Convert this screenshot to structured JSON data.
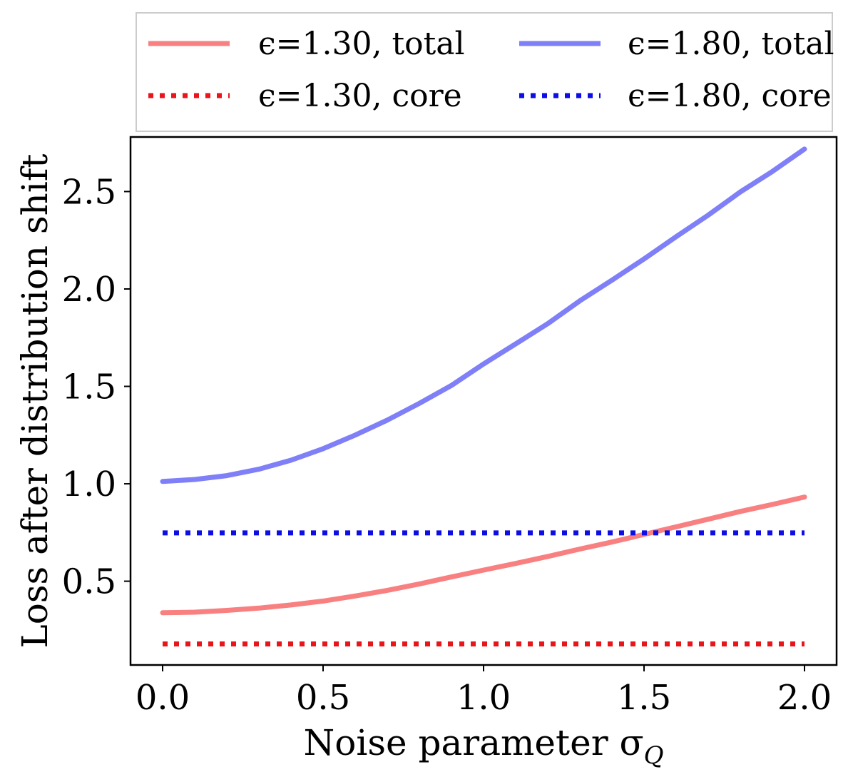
{
  "chart_data": {
    "type": "line",
    "title": "",
    "xlabel": "Noise parameter σ",
    "xlabel_subscript": "Q",
    "ylabel": "Loss after distribution shift",
    "xlim": [
      -0.1,
      2.1
    ],
    "ylim": [
      0.07,
      2.78
    ],
    "xticks": [
      0.0,
      0.5,
      1.0,
      1.5,
      2.0
    ],
    "xtick_labels": [
      "0.0",
      "0.5",
      "1.0",
      "1.5",
      "2.0"
    ],
    "yticks": [
      0.5,
      1.0,
      1.5,
      2.0,
      2.5
    ],
    "ytick_labels": [
      "0.5",
      "1.0",
      "1.5",
      "2.0",
      "2.5"
    ],
    "grid": false,
    "legend_placement": "top, above plot, 2 columns",
    "x": [
      0.0,
      0.1,
      0.2,
      0.3,
      0.4,
      0.5,
      0.6,
      0.7,
      0.8,
      0.9,
      1.0,
      1.1,
      1.2,
      1.3,
      1.4,
      1.5,
      1.6,
      1.7,
      1.8,
      1.9,
      2.0
    ],
    "series": [
      {
        "name": "ϵ=1.30, total",
        "color": "#f88080",
        "style": "solid",
        "values": [
          0.338,
          0.341,
          0.35,
          0.362,
          0.378,
          0.398,
          0.424,
          0.453,
          0.486,
          0.522,
          0.557,
          0.591,
          0.627,
          0.665,
          0.701,
          0.74,
          0.779,
          0.818,
          0.858,
          0.894,
          0.932
        ]
      },
      {
        "name": "ϵ=1.80, total",
        "color": "#7f7ff8",
        "style": "solid",
        "values": [
          1.012,
          1.022,
          1.042,
          1.075,
          1.121,
          1.18,
          1.25,
          1.327,
          1.413,
          1.505,
          1.615,
          1.718,
          1.822,
          1.939,
          2.045,
          2.154,
          2.268,
          2.379,
          2.498,
          2.603,
          2.718
        ]
      },
      {
        "name": "ϵ=1.30, core",
        "color": "#e8151b",
        "style": "dotted",
        "values": [
          0.178,
          0.178,
          0.178,
          0.178,
          0.178,
          0.178,
          0.178,
          0.178,
          0.178,
          0.178,
          0.178,
          0.178,
          0.178,
          0.178,
          0.178,
          0.178,
          0.178,
          0.178,
          0.178,
          0.178,
          0.178
        ]
      },
      {
        "name": "ϵ=1.80, core",
        "color": "#0d0de6",
        "style": "dotted",
        "values": [
          0.748,
          0.748,
          0.748,
          0.748,
          0.748,
          0.748,
          0.748,
          0.748,
          0.748,
          0.748,
          0.748,
          0.748,
          0.748,
          0.748,
          0.748,
          0.748,
          0.748,
          0.748,
          0.748,
          0.748,
          0.748
        ]
      }
    ],
    "legend": [
      {
        "label": "ϵ=1.30, total",
        "color": "#f88080",
        "style": "solid"
      },
      {
        "label": "ϵ=1.80, total",
        "color": "#7f7ff8",
        "style": "solid"
      },
      {
        "label": "ϵ=1.30, core",
        "color": "#e8151b",
        "style": "dotted"
      },
      {
        "label": "ϵ=1.80, core",
        "color": "#0d0de6",
        "style": "dotted"
      }
    ]
  }
}
